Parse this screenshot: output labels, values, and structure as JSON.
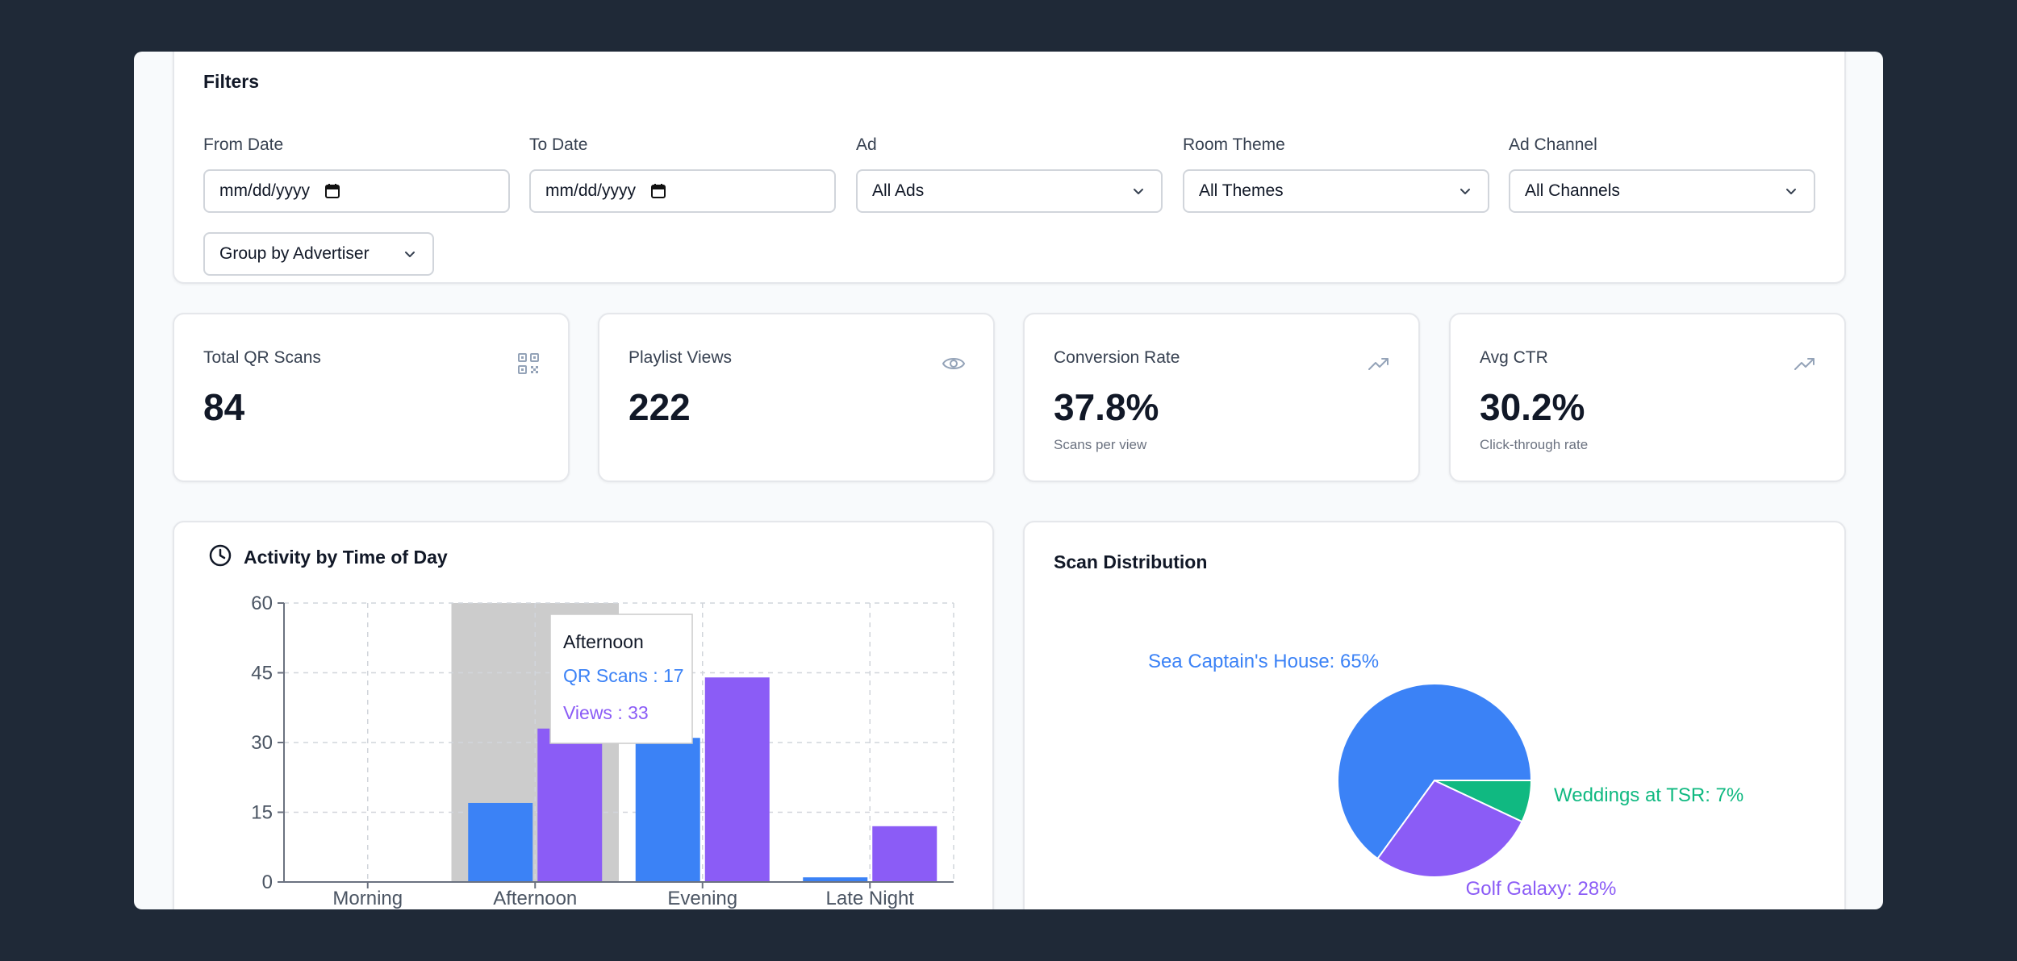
{
  "filters": {
    "title": "Filters",
    "from_date": {
      "label": "From Date",
      "value": "mm/dd/yyyy"
    },
    "to_date": {
      "label": "To Date",
      "value": "mm/dd/yyyy"
    },
    "ad": {
      "label": "Ad",
      "value": "All Ads"
    },
    "room_theme": {
      "label": "Room Theme",
      "value": "All Themes"
    },
    "ad_channel": {
      "label": "Ad Channel",
      "value": "All Channels"
    },
    "group_by": {
      "value": "Group by Advertiser"
    }
  },
  "stats": [
    {
      "label": "Total QR Scans",
      "value": "84",
      "sub": "",
      "icon": "qr-code-icon"
    },
    {
      "label": "Playlist Views",
      "value": "222",
      "sub": "",
      "icon": "eye-icon"
    },
    {
      "label": "Conversion Rate",
      "value": "37.8%",
      "sub": "Scans per view",
      "icon": "trending-up-icon"
    },
    {
      "label": "Avg CTR",
      "value": "30.2%",
      "sub": "Click-through rate",
      "icon": "trending-up-icon"
    }
  ],
  "colors": {
    "qr_scans": "#3b82f6",
    "views": "#8b5cf6",
    "weddings": "#10b981",
    "hover": "#cccccc"
  },
  "activity_card": {
    "title": "Activity by Time of Day",
    "icon": "clock-icon"
  },
  "distribution_card": {
    "title": "Scan Distribution"
  },
  "tooltip": {
    "title": "Afternoon",
    "qr_line": "QR Scans : 17",
    "views_line": "Views : 33"
  },
  "chart_data": [
    {
      "type": "bar",
      "title": "Activity by Time of Day",
      "categories": [
        "Morning",
        "Afternoon",
        "Evening",
        "Late Night"
      ],
      "series": [
        {
          "name": "QR Scans",
          "values": [
            0,
            17,
            31,
            1
          ]
        },
        {
          "name": "Views",
          "values": [
            0,
            33,
            44,
            12
          ]
        }
      ],
      "yticks": [
        0,
        15,
        30,
        45,
        60
      ],
      "ylim": [
        0,
        60
      ],
      "grid": true,
      "hovered_category": "Afternoon"
    },
    {
      "type": "pie",
      "title": "Scan Distribution",
      "slices": [
        {
          "label": "Sea Captain's House: 65%",
          "value": 65,
          "color": "#3b82f6"
        },
        {
          "label": "Golf Galaxy: 28%",
          "value": 28,
          "color": "#8b5cf6"
        },
        {
          "label": "Weddings at TSR: 7%",
          "value": 7,
          "color": "#10b981"
        }
      ]
    }
  ]
}
